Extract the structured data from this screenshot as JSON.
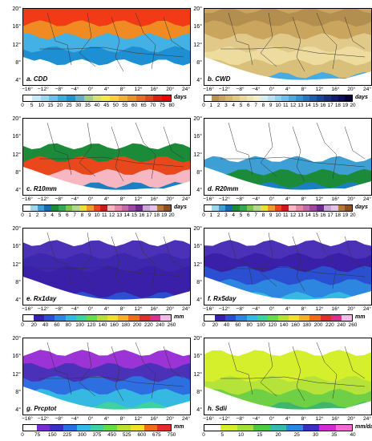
{
  "lat_ticks": [
    "20°",
    "16°",
    "12°",
    "8°",
    "4°"
  ],
  "lon_ticks": [
    "−16°",
    "−12°",
    "−8°",
    "−4°",
    "0°",
    "4°",
    "8°",
    "12°",
    "16°",
    "20°",
    "24°"
  ],
  "panels": [
    {
      "label": "a. CDD",
      "unit": "days",
      "ticks": [
        "0",
        "5",
        "10",
        "15",
        "20",
        "25",
        "30",
        "35",
        "40",
        "45",
        "50",
        "55",
        "60",
        "65",
        "70",
        "75",
        "80"
      ],
      "colors": [
        "#ffffff",
        "#c9e9f7",
        "#9fd7f0",
        "#6cc3ea",
        "#38aee3",
        "#1c97d6",
        "#5fb0c8",
        "#a6ce88",
        "#d7e36a",
        "#f3ea48",
        "#f7d13a",
        "#f4b02f",
        "#ef8f26",
        "#e86d20",
        "#e1481a",
        "#da2213",
        "#f20000"
      ],
      "map": {
        "bg": "#f23b16",
        "bands": [
          "#f23b16",
          "#f08a22",
          "#43b1e4",
          "#1f8fd3",
          "#ffffff",
          "#ffffff"
        ]
      }
    },
    {
      "label": "b. CWD",
      "unit": "days",
      "ticks": [
        "0",
        "1",
        "2",
        "3",
        "4",
        "5",
        "6",
        "7",
        "8",
        "9",
        "10",
        "11",
        "12",
        "13",
        "14",
        "15",
        "16",
        "17",
        "18",
        "19",
        "20"
      ],
      "colors": [
        "#ffffff",
        "#b9924d",
        "#c9a55e",
        "#d6b873",
        "#e1c98a",
        "#e9d8a0",
        "#efe4b5",
        "#f4eecb",
        "#d9ecee",
        "#b9e1ee",
        "#93d2ee",
        "#6cc0ea",
        "#48ace3",
        "#2f93d7",
        "#2277c7",
        "#1c5cb4",
        "#1a449d",
        "#182f84",
        "#141d6b",
        "#0e0f52",
        "#060032"
      ],
      "map": {
        "bg": "#c9a55e",
        "bands": [
          "#b38f4f",
          "#c9a55e",
          "#e1c98a",
          "#eddc9e",
          "#d9c07a",
          "#48ace3"
        ]
      }
    },
    {
      "label": "c. R10mm",
      "unit": "days",
      "ticks": [
        "0",
        "1",
        "2",
        "3",
        "4",
        "5",
        "6",
        "7",
        "8",
        "9",
        "10",
        "11",
        "12",
        "13",
        "14",
        "15",
        "16",
        "17",
        "18",
        "19",
        "20"
      ],
      "colors": [
        "#ffffff",
        "#9fd5ea",
        "#3e9fd4",
        "#176bb3",
        "#1b8b3a",
        "#34a853",
        "#7fc64d",
        "#b4d889",
        "#e8e03c",
        "#ef9a2a",
        "#e8481c",
        "#c9181e",
        "#f6b6c2",
        "#e487a9",
        "#c56aa8",
        "#9d49a0",
        "#6e2c8c",
        "#c9a6d6",
        "#e3c1e6",
        "#b6793d",
        "#8a5226"
      ],
      "map": {
        "bg": "#ffffff",
        "bands": [
          "#ffffff",
          "#ffffff",
          "#1b8b3a",
          "#e8481c",
          "#f6b6c2",
          "#1c7fc2"
        ]
      }
    },
    {
      "label": "d. R20mm",
      "unit": "days",
      "ticks": [
        "0",
        "1",
        "2",
        "3",
        "4",
        "5",
        "6",
        "7",
        "8",
        "9",
        "10",
        "11",
        "12",
        "13",
        "14",
        "15",
        "16",
        "17",
        "18",
        "19",
        "20"
      ],
      "colors": [
        "#ffffff",
        "#9fd5ea",
        "#3e9fd4",
        "#176bb3",
        "#1b8b3a",
        "#34a853",
        "#7fc64d",
        "#b4d889",
        "#e8e03c",
        "#ef9a2a",
        "#e8481c",
        "#c9181e",
        "#f6b6c2",
        "#e487a9",
        "#c56aa8",
        "#9d49a0",
        "#6e2c8c",
        "#c9a6d6",
        "#e3c1e6",
        "#b6793d",
        "#8a5226"
      ],
      "map": {
        "bg": "#ffffff",
        "bands": [
          "#ffffff",
          "#ffffff",
          "#ffffff",
          "#3e9fd4",
          "#1b8b3a",
          "#1c7fc2"
        ]
      }
    },
    {
      "label": "e. Rx1day",
      "unit": "mm",
      "ticks": [
        "0",
        "20",
        "40",
        "60",
        "80",
        "100",
        "120",
        "140",
        "160",
        "180",
        "200",
        "220",
        "240",
        "260"
      ],
      "colors": [
        "#ffffff",
        "#3a1fa8",
        "#2a4fd0",
        "#2d86e0",
        "#35b9e3",
        "#3fd1a0",
        "#68db4c",
        "#b8e02f",
        "#f1e025",
        "#f5b21e",
        "#ef6c1b",
        "#e52b2b",
        "#e12d8f",
        "#f4b9e8"
      ],
      "map": {
        "bg": "#ffffff",
        "bands": [
          "#ffffff",
          "#4a31b8",
          "#3d27ad",
          "#3a1fa8",
          "#3a1fa8",
          "#2a4fd0"
        ]
      }
    },
    {
      "label": "f. Rx5day",
      "unit": "mm",
      "ticks": [
        "0",
        "20",
        "40",
        "60",
        "80",
        "100",
        "120",
        "140",
        "160",
        "180",
        "200",
        "220",
        "240",
        "260"
      ],
      "colors": [
        "#ffffff",
        "#3a1fa8",
        "#2a4fd0",
        "#2d86e0",
        "#35b9e3",
        "#3fd1a0",
        "#68db4c",
        "#b8e02f",
        "#f1e025",
        "#f5b21e",
        "#ef6c1b",
        "#e52b2b",
        "#e12d8f",
        "#f4b9e8"
      ],
      "map": {
        "bg": "#ffffff",
        "bands": [
          "#ffffff",
          "#4a31b8",
          "#3a1fa8",
          "#2a4fd0",
          "#2d86e0",
          "#35b9e3"
        ]
      }
    },
    {
      "label": "g. Prcptot",
      "unit": "mm",
      "ticks": [
        "0",
        "75",
        "150",
        "225",
        "300",
        "375",
        "450",
        "525",
        "600",
        "675",
        "750"
      ],
      "colors": [
        "#ffffff",
        "#7a2bd0",
        "#3a2fc2",
        "#2d6fe0",
        "#35b9e3",
        "#3fd1a0",
        "#68db4c",
        "#b8e02f",
        "#f1e025",
        "#ef6c1b",
        "#e52b2b"
      ],
      "map": {
        "bg": "#ffffff",
        "bands": [
          "#ffffff",
          "#9b33d6",
          "#4a31b8",
          "#2d6fe0",
          "#35b9e3",
          "#3fd1a0"
        ]
      }
    },
    {
      "label": "h. Sdii",
      "unit": "mm/day",
      "ticks": [
        "0",
        "5",
        "10",
        "15",
        "20",
        "25",
        "30",
        "35",
        "40"
      ],
      "colors": [
        "#ffffff",
        "#d6ef2c",
        "#a2e03a",
        "#4ec847",
        "#36b9b0",
        "#2d86e0",
        "#3a2fc2",
        "#d22ad0",
        "#f06ad8"
      ],
      "map": {
        "bg": "#ffffff",
        "bands": [
          "#ffffff",
          "#d6ef2c",
          "#d6ef2c",
          "#b6e33a",
          "#6fcf45",
          "#3fb66b"
        ]
      }
    }
  ]
}
